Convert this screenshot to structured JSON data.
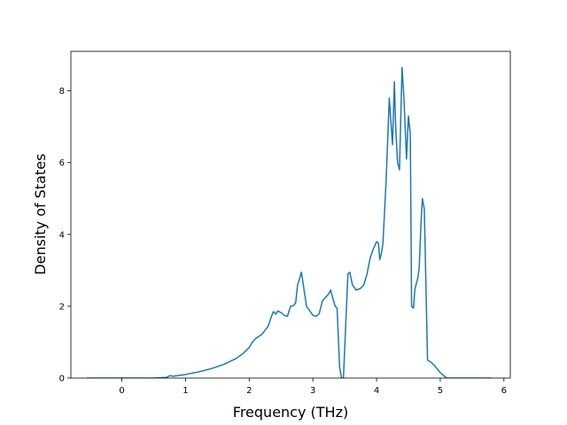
{
  "chart_data": {
    "type": "line",
    "title": "",
    "xlabel": "Frequency (THz)",
    "ylabel": "Density of States",
    "xlim": [
      -0.8,
      6.1
    ],
    "ylim": [
      0,
      9.1
    ],
    "xticks": [
      0,
      1,
      2,
      3,
      4,
      5,
      6
    ],
    "yticks": [
      0,
      2,
      4,
      6,
      8
    ],
    "grid": false,
    "legend": "none",
    "series": [
      {
        "color": "#1f77b4",
        "x": [
          -0.55,
          0.0,
          0.5,
          0.7,
          0.76,
          0.8,
          1.0,
          1.2,
          1.4,
          1.6,
          1.8,
          1.9,
          2.0,
          2.05,
          2.1,
          2.2,
          2.3,
          2.35,
          2.38,
          2.42,
          2.45,
          2.5,
          2.55,
          2.6,
          2.65,
          2.7,
          2.73,
          2.76,
          2.78,
          2.82,
          2.9,
          3.0,
          3.05,
          3.1,
          3.15,
          3.2,
          3.25,
          3.28,
          3.3,
          3.35,
          3.38,
          3.42,
          3.45,
          3.48,
          3.55,
          3.58,
          3.62,
          3.68,
          3.75,
          3.8,
          3.85,
          3.9,
          3.95,
          4.0,
          4.03,
          4.05,
          4.08,
          4.1,
          4.15,
          4.2,
          4.25,
          4.28,
          4.3,
          4.33,
          4.36,
          4.4,
          4.43,
          4.47,
          4.5,
          4.53,
          4.55,
          4.58,
          4.6,
          4.62,
          4.65,
          4.67,
          4.7,
          4.72,
          4.75,
          4.8,
          4.85,
          4.88,
          4.91,
          4.94,
          4.97,
          5.0,
          5.1,
          5.2,
          5.25,
          5.3,
          5.5,
          5.8
        ],
        "y": [
          0.0,
          0.0,
          0.0,
          0.02,
          0.07,
          0.05,
          0.1,
          0.17,
          0.26,
          0.38,
          0.55,
          0.68,
          0.85,
          1.0,
          1.1,
          1.22,
          1.45,
          1.72,
          1.85,
          1.78,
          1.87,
          1.82,
          1.75,
          1.72,
          2.0,
          2.02,
          2.1,
          2.6,
          2.7,
          2.95,
          2.0,
          1.75,
          1.72,
          1.8,
          2.15,
          2.25,
          2.35,
          2.45,
          2.3,
          2.0,
          1.95,
          0.3,
          0.0,
          0.0,
          2.9,
          2.95,
          2.6,
          2.45,
          2.5,
          2.6,
          2.9,
          3.35,
          3.6,
          3.8,
          3.75,
          3.3,
          3.5,
          3.75,
          5.5,
          7.8,
          6.5,
          8.25,
          7.0,
          6.0,
          5.8,
          8.65,
          7.8,
          6.1,
          7.3,
          6.8,
          2.0,
          1.95,
          2.45,
          2.6,
          2.8,
          3.1,
          4.4,
          5.0,
          4.7,
          0.5,
          0.45,
          0.4,
          0.35,
          0.28,
          0.22,
          0.15,
          0.0,
          0.0,
          0.0,
          0.0,
          0.0,
          0.0
        ]
      }
    ]
  }
}
